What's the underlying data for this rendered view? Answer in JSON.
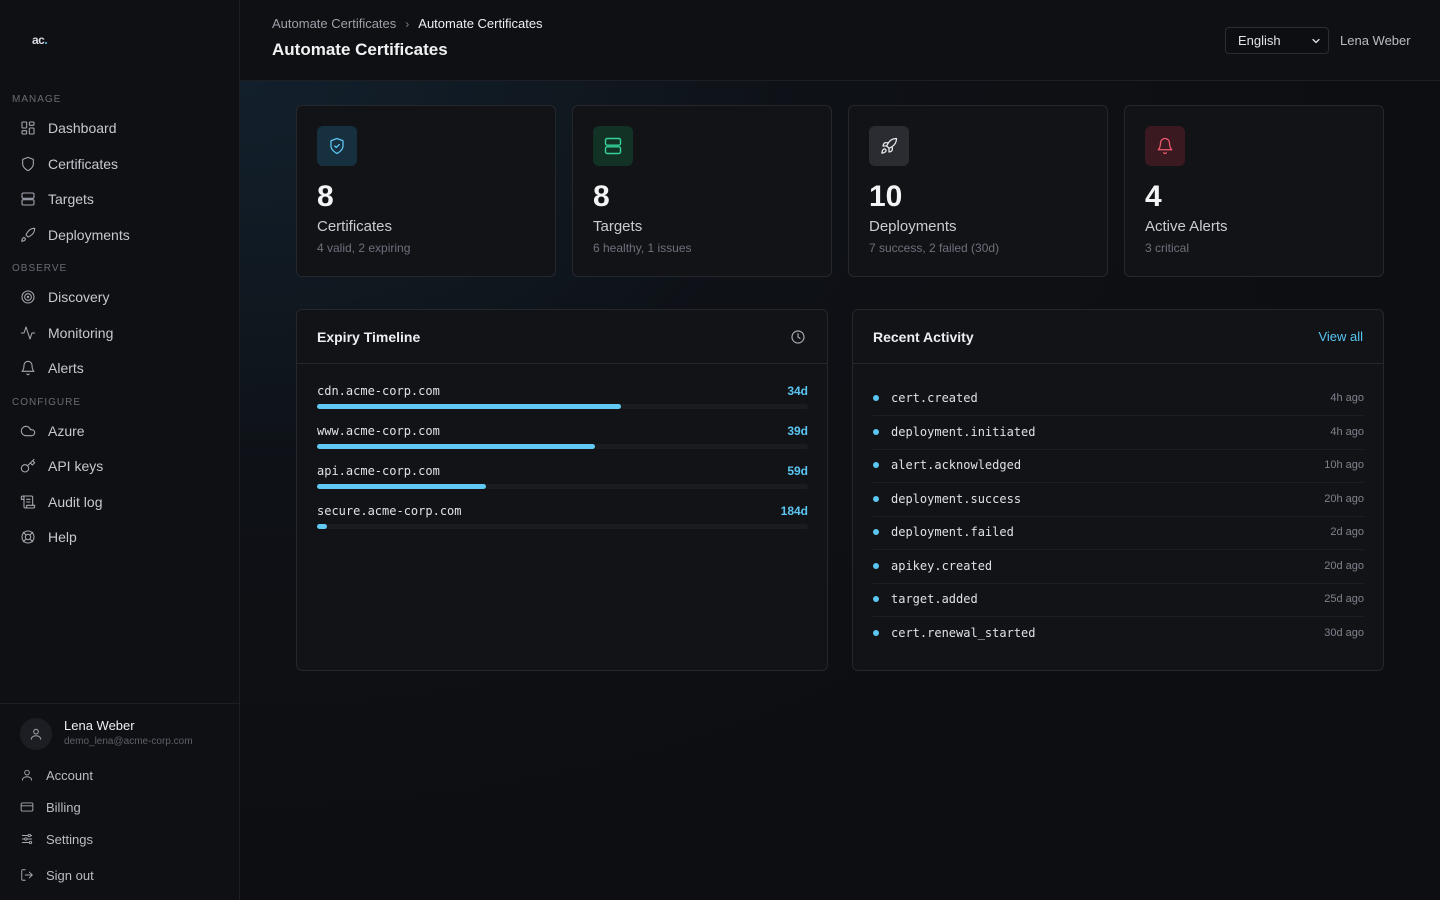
{
  "app": {
    "logo_text": "ac",
    "logo_dot": "."
  },
  "sidebar": {
    "sections": {
      "manage": "MANAGE",
      "observe": "OBSERVE",
      "configure": "CONFIGURE"
    },
    "items": [
      {
        "label": "Dashboard",
        "icon": "dashboard-icon"
      },
      {
        "label": "Certificates",
        "icon": "shield-icon"
      },
      {
        "label": "Targets",
        "icon": "server-icon"
      },
      {
        "label": "Deployments",
        "icon": "rocket-icon"
      },
      {
        "label": "Discovery",
        "icon": "radar-icon"
      },
      {
        "label": "Monitoring",
        "icon": "activity-icon"
      },
      {
        "label": "Alerts",
        "icon": "bell-icon"
      },
      {
        "label": "Azure",
        "icon": "cloud-icon"
      },
      {
        "label": "API keys",
        "icon": "key-icon"
      },
      {
        "label": "Audit log",
        "icon": "scroll-icon"
      },
      {
        "label": "Help",
        "icon": "lifebuoy-icon"
      }
    ],
    "user": {
      "name": "Lena Weber",
      "email": "demo_lena@acme-corp.com"
    },
    "account_items": [
      {
        "label": "Account",
        "icon": "user-icon"
      },
      {
        "label": "Billing",
        "icon": "credit-card-icon"
      },
      {
        "label": "Settings",
        "icon": "sliders-icon"
      },
      {
        "label": "Sign out",
        "icon": "logout-icon"
      }
    ]
  },
  "header": {
    "breadcrumb": [
      "Automate Certificates",
      "Automate Certificates"
    ],
    "title": "Automate Certificates",
    "language": "English",
    "user_name": "Lena Weber"
  },
  "stats": [
    {
      "value": "8",
      "label": "Certificates",
      "sub": "4 valid, 2 expiring",
      "icon": "shield-check-icon",
      "accent": "#5cc6f2"
    },
    {
      "value": "8",
      "label": "Targets",
      "sub": "6 healthy, 1 issues",
      "icon": "server-icon",
      "accent": "#34d399"
    },
    {
      "value": "10",
      "label": "Deployments",
      "sub": "7 success, 2 failed (30d)",
      "icon": "rocket-icon",
      "accent": "#e5e7eb"
    },
    {
      "value": "4",
      "label": "Active Alerts",
      "sub": "3 critical",
      "icon": "bell-icon",
      "accent": "#f05a6e"
    }
  ],
  "expiry": {
    "title": "Expiry Timeline",
    "rows": [
      {
        "domain": "cdn.acme-corp.com",
        "days": "34d",
        "fill": 0.62
      },
      {
        "domain": "www.acme-corp.com",
        "days": "39d",
        "fill": 0.567
      },
      {
        "domain": "api.acme-corp.com",
        "days": "59d",
        "fill": 0.345
      },
      {
        "domain": "secure.acme-corp.com",
        "days": "184d",
        "fill": 0.02
      }
    ]
  },
  "activity": {
    "title": "Recent Activity",
    "view_all": "View all",
    "rows": [
      {
        "event": "cert.created",
        "time": "4h ago"
      },
      {
        "event": "deployment.initiated",
        "time": "4h ago"
      },
      {
        "event": "alert.acknowledged",
        "time": "10h ago"
      },
      {
        "event": "deployment.success",
        "time": "20h ago"
      },
      {
        "event": "deployment.failed",
        "time": "2d ago"
      },
      {
        "event": "apikey.created",
        "time": "20d ago"
      },
      {
        "event": "target.added",
        "time": "25d ago"
      },
      {
        "event": "cert.renewal_started",
        "time": "30d ago"
      }
    ]
  }
}
